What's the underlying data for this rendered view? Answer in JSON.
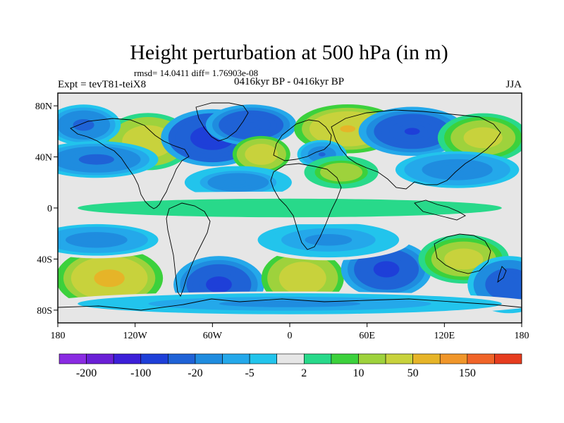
{
  "chart_data": {
    "type": "heatmap",
    "title": "Height perturbation at 500 hPa (in m)",
    "stats_line": "rmsd= 14.0411 diff= 1.76903e-08",
    "left_label": "Expt = tevT81-teiX8",
    "center_label": "0416kyr BP - 0416kyr BP",
    "right_label": "JJA",
    "xlim": [
      -180,
      180
    ],
    "ylim": [
      -90,
      90
    ],
    "x_ticks": [
      {
        "value": -180,
        "label": "180"
      },
      {
        "value": -120,
        "label": "120W"
      },
      {
        "value": -60,
        "label": "60W"
      },
      {
        "value": 0,
        "label": "0"
      },
      {
        "value": 60,
        "label": "60E"
      },
      {
        "value": 120,
        "label": "120E"
      },
      {
        "value": 180,
        "label": "180"
      }
    ],
    "y_ticks": [
      {
        "value": 80,
        "label": "80N"
      },
      {
        "value": 40,
        "label": "40N"
      },
      {
        "value": 0,
        "label": "0"
      },
      {
        "value": -40,
        "label": "40S"
      },
      {
        "value": -80,
        "label": "80S"
      }
    ],
    "colorbar": {
      "colors": [
        "#8a2be2",
        "#6a1fd6",
        "#3c1fd8",
        "#1e3fd8",
        "#1f62d6",
        "#1f8cdf",
        "#24a8ea",
        "#22c4ec",
        "#e6e6e6",
        "#28d98a",
        "#3cd13c",
        "#9ed23c",
        "#c8d23c",
        "#e6b428",
        "#f0962a",
        "#f06428",
        "#e63c1e"
      ],
      "labels": [
        {
          "after": 1,
          "text": "-200"
        },
        {
          "after": 3,
          "text": "-100"
        },
        {
          "after": 5,
          "text": "-20"
        },
        {
          "after": 7,
          "text": "-5"
        },
        {
          "after": 9,
          "text": "2"
        },
        {
          "after": 11,
          "text": "10"
        },
        {
          "after": 13,
          "text": "50"
        },
        {
          "after": 15,
          "text": "150"
        }
      ]
    },
    "anomalies": [
      {
        "lon": -110,
        "lat": 52,
        "value": 40,
        "wlon": 22,
        "wlat": 14
      },
      {
        "lon": -60,
        "lat": 55,
        "value": -80,
        "wlon": 25,
        "wlat": 14
      },
      {
        "lon": -30,
        "lat": 65,
        "value": -50,
        "wlon": 22,
        "wlat": 10
      },
      {
        "lon": -22,
        "lat": 42,
        "value": 45,
        "wlon": 14,
        "wlat": 9
      },
      {
        "lon": 45,
        "lat": 62,
        "value": 55,
        "wlon": 26,
        "wlat": 12
      },
      {
        "lon": 25,
        "lat": 42,
        "value": -22,
        "wlon": 12,
        "wlat": 7
      },
      {
        "lon": 95,
        "lat": 60,
        "value": -55,
        "wlon": 26,
        "wlat": 12
      },
      {
        "lon": 150,
        "lat": 55,
        "value": 30,
        "wlon": 22,
        "wlat": 12
      },
      {
        "lon": -160,
        "lat": 65,
        "value": -25,
        "wlon": 18,
        "wlat": 10
      },
      {
        "lon": -150,
        "lat": 38,
        "value": -25,
        "wlon": 30,
        "wlat": 9
      },
      {
        "lon": -40,
        "lat": 20,
        "value": -18,
        "wlon": 26,
        "wlat": 8
      },
      {
        "lon": 40,
        "lat": 28,
        "value": 18,
        "wlon": 18,
        "wlat": 8
      },
      {
        "lon": 130,
        "lat": 30,
        "value": -20,
        "wlon": 30,
        "wlat": 9
      },
      {
        "lon": -140,
        "lat": -55,
        "value": 70,
        "wlon": 26,
        "wlat": 15
      },
      {
        "lon": -55,
        "lat": -60,
        "value": -60,
        "wlon": 22,
        "wlat": 14
      },
      {
        "lon": 10,
        "lat": -55,
        "value": 45,
        "wlon": 20,
        "wlat": 14
      },
      {
        "lon": 75,
        "lat": -48,
        "value": -60,
        "wlon": 22,
        "wlat": 14
      },
      {
        "lon": 135,
        "lat": -40,
        "value": 35,
        "wlon": 22,
        "wlat": 12
      },
      {
        "lon": 170,
        "lat": -60,
        "value": -40,
        "wlon": 20,
        "wlat": 14
      },
      {
        "lon": -150,
        "lat": -25,
        "value": -15,
        "wlon": 35,
        "wlat": 9
      },
      {
        "lon": 30,
        "lat": -25,
        "value": -12,
        "wlon": 40,
        "wlat": 10
      },
      {
        "lon": 0,
        "lat": -75,
        "value": -12,
        "wlon": 120,
        "wlat": 6
      },
      {
        "lon": 0,
        "lat": 0,
        "value": 4,
        "wlon": 180,
        "wlat": 8
      }
    ]
  }
}
